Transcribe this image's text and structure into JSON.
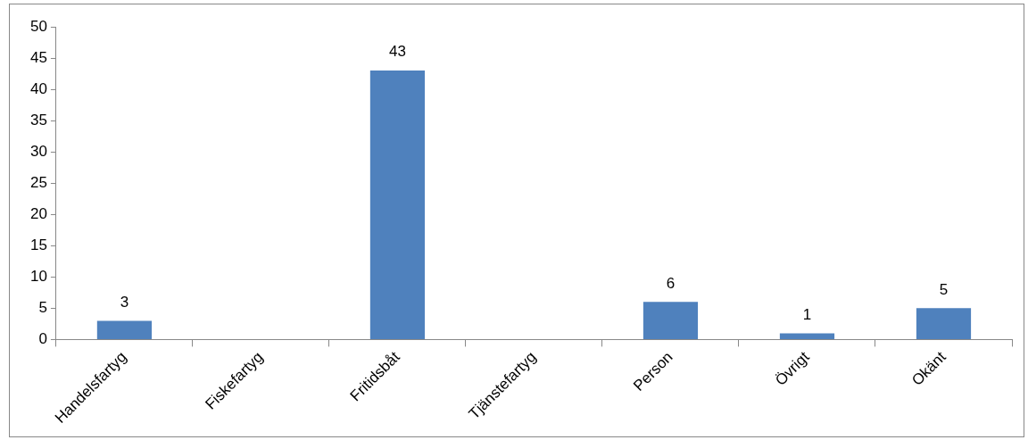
{
  "chart_data": {
    "type": "bar",
    "categories": [
      "Handelsfartyg",
      "Fiskefartyg",
      "Fritidsbåt",
      "Tjänstefartyg",
      "Person",
      "Övrigt",
      "Okänt"
    ],
    "values": [
      3,
      null,
      43,
      null,
      6,
      1,
      5
    ],
    "value_labels": [
      "3",
      null,
      "43",
      null,
      "6",
      "1",
      "5"
    ],
    "color": "#4f81bd",
    "ylim": [
      0,
      50
    ],
    "yticks": [
      0,
      5,
      10,
      15,
      20,
      25,
      30,
      35,
      40,
      45,
      50
    ],
    "grid": false,
    "legend": false
  }
}
